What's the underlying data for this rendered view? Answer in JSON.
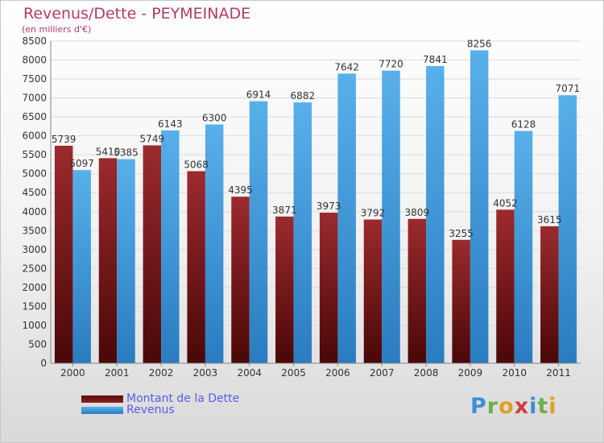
{
  "title": "Revenus/Dette - PEYMEINADE",
  "subtitle": "(en milliers d'€)",
  "logo": "Proxiti",
  "colors": {
    "dette": "#8a1f25",
    "revenus": "#4aa3e0",
    "title": "#b03a68",
    "legend_text": "#5a5ae6"
  },
  "chart_data": {
    "type": "bar",
    "categories": [
      "2000",
      "2001",
      "2002",
      "2003",
      "2004",
      "2005",
      "2006",
      "2007",
      "2008",
      "2009",
      "2010",
      "2011"
    ],
    "series": [
      {
        "name": "Montant de la Dette",
        "values": [
          5739,
          5410,
          5749,
          5068,
          4395,
          3871,
          3973,
          3792,
          3809,
          3255,
          4052,
          3615
        ],
        "labels": [
          "5739",
          "5410",
          "5749",
          "5068",
          "4395",
          "3871",
          "3973",
          "3792",
          "3809",
          "3255",
          "4052",
          "3615"
        ]
      },
      {
        "name": "Revenus",
        "values": [
          5097,
          5385,
          6143,
          6300,
          6914,
          6882,
          7642,
          7720,
          7841,
          8256,
          6128,
          7071
        ],
        "labels": [
          "5097",
          "5385",
          "6143",
          "6300",
          "6914",
          "6882",
          "7642",
          "7720",
          "7841",
          "8256",
          "6128",
          "7071"
        ]
      }
    ],
    "ylim": [
      0,
      8500
    ],
    "yticks": [
      0,
      500,
      1000,
      1500,
      2000,
      2500,
      3000,
      3500,
      4000,
      4500,
      5000,
      5500,
      6000,
      6500,
      7000,
      7500,
      8000,
      8500
    ],
    "grid": true,
    "legend_position": "bottom-left"
  }
}
